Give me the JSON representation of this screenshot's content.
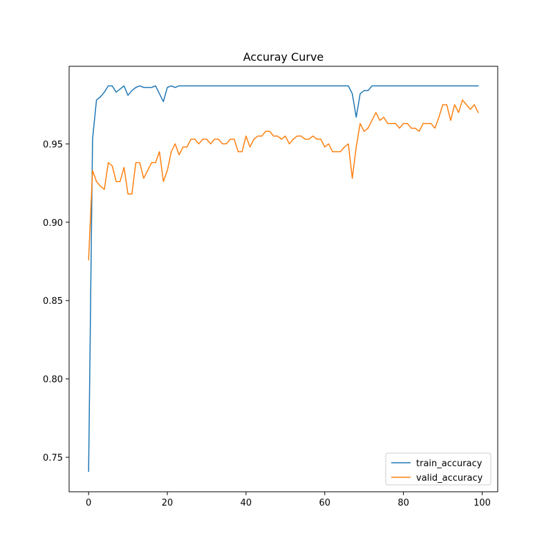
{
  "chart_data": {
    "type": "line",
    "title": "Accuray Curve",
    "xlabel": "",
    "ylabel": "",
    "xlim": [
      -4.95,
      103.95
    ],
    "ylim": [
      0.728,
      0.9995
    ],
    "xticks": [
      0,
      20,
      40,
      60,
      80,
      100
    ],
    "yticks": [
      0.75,
      0.8,
      0.85,
      0.9,
      0.95
    ],
    "ytick_labels": [
      "0.75",
      "0.80",
      "0.85",
      "0.90",
      "0.95"
    ],
    "grid": false,
    "legend_position": "lower-right",
    "x": [
      0,
      1,
      2,
      3,
      4,
      5,
      6,
      7,
      8,
      9,
      10,
      11,
      12,
      13,
      14,
      15,
      16,
      17,
      18,
      19,
      20,
      21,
      22,
      23,
      24,
      25,
      26,
      27,
      28,
      29,
      30,
      31,
      32,
      33,
      34,
      35,
      36,
      37,
      38,
      39,
      40,
      41,
      42,
      43,
      44,
      45,
      46,
      47,
      48,
      49,
      50,
      51,
      52,
      53,
      54,
      55,
      56,
      57,
      58,
      59,
      60,
      61,
      62,
      63,
      64,
      65,
      66,
      67,
      68,
      69,
      70,
      71,
      72,
      73,
      74,
      75,
      76,
      77,
      78,
      79,
      80,
      81,
      82,
      83,
      84,
      85,
      86,
      87,
      88,
      89,
      90,
      91,
      92,
      93,
      94,
      95,
      96,
      97,
      98,
      99
    ],
    "series": [
      {
        "name": "train_accuracy",
        "color": "#1f77b4",
        "values": [
          0.741,
          0.953,
          0.978,
          0.98,
          0.983,
          0.987,
          0.987,
          0.983,
          0.985,
          0.987,
          0.981,
          0.984,
          0.986,
          0.987,
          0.986,
          0.986,
          0.986,
          0.987,
          0.982,
          0.977,
          0.986,
          0.987,
          0.986,
          0.987,
          0.987,
          0.987,
          0.987,
          0.987,
          0.987,
          0.987,
          0.987,
          0.987,
          0.987,
          0.987,
          0.987,
          0.987,
          0.987,
          0.987,
          0.987,
          0.987,
          0.987,
          0.987,
          0.987,
          0.987,
          0.987,
          0.987,
          0.987,
          0.987,
          0.987,
          0.987,
          0.987,
          0.987,
          0.987,
          0.987,
          0.987,
          0.987,
          0.987,
          0.987,
          0.987,
          0.987,
          0.987,
          0.987,
          0.987,
          0.987,
          0.987,
          0.987,
          0.987,
          0.982,
          0.967,
          0.982,
          0.984,
          0.984,
          0.987,
          0.987,
          0.987,
          0.987,
          0.987,
          0.987,
          0.987,
          0.987,
          0.987,
          0.987,
          0.987,
          0.987,
          0.987,
          0.987,
          0.987,
          0.987,
          0.987,
          0.987,
          0.987,
          0.987,
          0.987,
          0.987,
          0.987,
          0.987,
          0.987,
          0.987,
          0.987,
          0.987
        ]
      },
      {
        "name": "valid_accuracy",
        "color": "#ff7f0e",
        "values": [
          0.876,
          0.933,
          0.926,
          0.923,
          0.921,
          0.938,
          0.936,
          0.926,
          0.926,
          0.935,
          0.918,
          0.918,
          0.938,
          0.938,
          0.928,
          0.933,
          0.938,
          0.938,
          0.945,
          0.926,
          0.933,
          0.945,
          0.95,
          0.943,
          0.948,
          0.948,
          0.953,
          0.953,
          0.95,
          0.953,
          0.953,
          0.95,
          0.953,
          0.953,
          0.95,
          0.95,
          0.953,
          0.953,
          0.945,
          0.945,
          0.955,
          0.948,
          0.953,
          0.955,
          0.955,
          0.958,
          0.958,
          0.955,
          0.955,
          0.953,
          0.955,
          0.95,
          0.953,
          0.955,
          0.955,
          0.953,
          0.953,
          0.955,
          0.953,
          0.953,
          0.948,
          0.95,
          0.945,
          0.945,
          0.945,
          0.948,
          0.95,
          0.928,
          0.948,
          0.963,
          0.958,
          0.96,
          0.965,
          0.97,
          0.965,
          0.967,
          0.963,
          0.963,
          0.963,
          0.96,
          0.963,
          0.963,
          0.96,
          0.96,
          0.958,
          0.963,
          0.963,
          0.963,
          0.96,
          0.967,
          0.975,
          0.975,
          0.965,
          0.975,
          0.97,
          0.978,
          0.975,
          0.972,
          0.975,
          0.97
        ]
      }
    ]
  }
}
